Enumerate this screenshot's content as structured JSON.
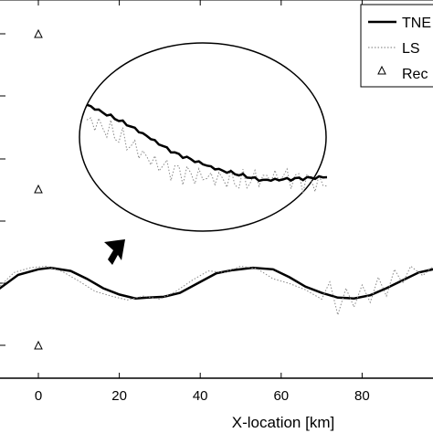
{
  "chart_data": {
    "type": "line",
    "title": "",
    "xlabel": "X-location [km]",
    "ylabel": "",
    "xlim": [
      -10,
      100
    ],
    "x_ticks": [
      "0",
      "20",
      "40",
      "60",
      "80"
    ],
    "x_tick_values": [
      0,
      20,
      40,
      60,
      80
    ],
    "legend": {
      "placement": "top-right",
      "entries": [
        "TNE",
        "LS",
        "Rec"
      ]
    },
    "series": [
      {
        "name": "TNE",
        "style": "solid-thick",
        "color": "#000000",
        "x": [
          -10,
          -5,
          0,
          3,
          8,
          12,
          16,
          20,
          24,
          27,
          31,
          35,
          40,
          44,
          48,
          53,
          58,
          62,
          66,
          70,
          74,
          78,
          82,
          86,
          90,
          94,
          100
        ],
        "y": [
          -1.0,
          -0.05,
          0.3,
          0.4,
          0.2,
          -0.3,
          -0.9,
          -1.3,
          -1.55,
          -1.5,
          -1.45,
          -1.2,
          -0.5,
          0.05,
          0.25,
          0.4,
          0.3,
          -0.2,
          -0.8,
          -1.2,
          -1.5,
          -1.55,
          -1.35,
          -0.9,
          -0.4,
          0.1,
          0.45
        ]
      },
      {
        "name": "LS",
        "style": "dotted",
        "color": "#888888",
        "x": [
          -10,
          -6,
          -2,
          2,
          6,
          10,
          14,
          18,
          22,
          26,
          30,
          34,
          38,
          42,
          46,
          50,
          54,
          58,
          62,
          66,
          70,
          72,
          74,
          76,
          78,
          80,
          82,
          84,
          86,
          88,
          90,
          92,
          95,
          98,
          100
        ],
        "y": [
          -0.9,
          0.1,
          0.4,
          0.5,
          0.15,
          -0.45,
          -1.1,
          -1.4,
          -1.65,
          -1.4,
          -1.6,
          -1.1,
          -0.4,
          0.2,
          0.1,
          0.5,
          0.35,
          -0.3,
          -0.6,
          -1.0,
          -1.6,
          -0.5,
          -2.6,
          -0.9,
          -2.1,
          -0.7,
          -1.8,
          -0.2,
          -1.4,
          0.3,
          -0.6,
          0.5,
          -0.1,
          0.6,
          0.3
        ]
      }
    ],
    "receivers": {
      "name": "Rec",
      "marker": "triangle",
      "x": [
        0,
        0,
        0
      ],
      "y": [
        10,
        5,
        -2
      ]
    },
    "ylim": [
      -2.8,
      11.8
    ]
  },
  "annotations": {
    "zoom_ellipse": "zoom-ellipse",
    "arrow": "arrow-icon"
  }
}
